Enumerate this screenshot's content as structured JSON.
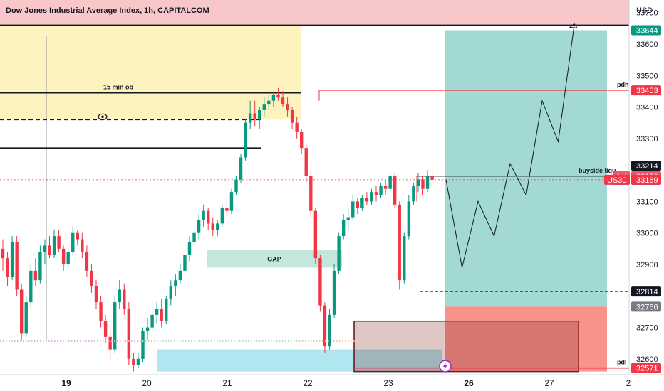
{
  "chart_data": {
    "type": "candlestick",
    "title": "Dow Jones Industrial Average Index, 1h, CAPITALCOM",
    "currency": "USD",
    "y_axis": {
      "range": [
        32550,
        33740
      ],
      "ticks": [
        33700,
        33600,
        33500,
        33400,
        33300,
        33100,
        33000,
        32900,
        32700,
        32600
      ]
    },
    "x_axis": {
      "ticks": [
        {
          "label": "19",
          "bold": true
        },
        {
          "label": "20",
          "bold": false
        },
        {
          "label": "21",
          "bold": false
        },
        {
          "label": "22",
          "bold": false
        },
        {
          "label": "23",
          "bold": false
        },
        {
          "label": "26",
          "bold": true
        },
        {
          "label": "27",
          "bold": false
        },
        {
          "label": "2",
          "bold": false
        }
      ]
    },
    "candles": [
      [
        32950,
        32980,
        32880,
        32920
      ],
      [
        32920,
        32940,
        32830,
        32860
      ],
      [
        32860,
        32990,
        32850,
        32970
      ],
      [
        32970,
        32990,
        32800,
        32820
      ],
      [
        32820,
        32840,
        32660,
        32680
      ],
      [
        32680,
        32800,
        32670,
        32780
      ],
      [
        32780,
        32900,
        32760,
        32880
      ],
      [
        32880,
        32920,
        32830,
        32850
      ],
      [
        32850,
        32960,
        32840,
        32940
      ],
      [
        32940,
        32980,
        32900,
        32960
      ],
      [
        32960,
        32990,
        32920,
        32930
      ],
      [
        32930,
        33010,
        32920,
        32990
      ],
      [
        32990,
        33010,
        32940,
        32950
      ],
      [
        32950,
        32960,
        32880,
        32900
      ],
      [
        32900,
        32950,
        32890,
        32940
      ],
      [
        32940,
        33020,
        32930,
        33000
      ],
      [
        33000,
        33010,
        32960,
        32980
      ],
      [
        32980,
        33000,
        32920,
        32940
      ],
      [
        32940,
        32960,
        32860,
        32880
      ],
      [
        32880,
        32900,
        32810,
        32830
      ],
      [
        32830,
        32850,
        32760,
        32780
      ],
      [
        32780,
        32800,
        32700,
        32720
      ],
      [
        32720,
        32740,
        32650,
        32670
      ],
      [
        32670,
        32690,
        32600,
        32630
      ],
      [
        32630,
        32800,
        32620,
        32780
      ],
      [
        32780,
        32850,
        32760,
        32820
      ],
      [
        32820,
        32840,
        32740,
        32760
      ],
      [
        32760,
        32780,
        32580,
        32600
      ],
      [
        32600,
        32620,
        32560,
        32580
      ],
      [
        32580,
        32620,
        32570,
        32600
      ],
      [
        32600,
        32700,
        32590,
        32690
      ],
      [
        32690,
        32730,
        32660,
        32700
      ],
      [
        32700,
        32760,
        32690,
        32740
      ],
      [
        32740,
        32780,
        32710,
        32760
      ],
      [
        32760,
        32790,
        32700,
        32720
      ],
      [
        32720,
        32800,
        32710,
        32790
      ],
      [
        32790,
        32850,
        32770,
        32830
      ],
      [
        32830,
        32870,
        32800,
        32850
      ],
      [
        32850,
        32900,
        32840,
        32880
      ],
      [
        32880,
        32950,
        32870,
        32930
      ],
      [
        32930,
        32990,
        32910,
        32970
      ],
      [
        32970,
        33020,
        32950,
        33000
      ],
      [
        33000,
        33060,
        32980,
        33040
      ],
      [
        33040,
        33090,
        33020,
        33070
      ],
      [
        33070,
        33080,
        33010,
        33030
      ],
      [
        33030,
        33050,
        32990,
        33010
      ],
      [
        33010,
        33040,
        32990,
        33030
      ],
      [
        33030,
        33090,
        33020,
        33080
      ],
      [
        33080,
        33110,
        33050,
        33070
      ],
      [
        33070,
        33140,
        33060,
        33130
      ],
      [
        33130,
        33180,
        33120,
        33170
      ],
      [
        33170,
        33250,
        33160,
        33240
      ],
      [
        33240,
        33360,
        33230,
        33350
      ],
      [
        33350,
        33420,
        33330,
        33380
      ],
      [
        33380,
        33420,
        33340,
        33360
      ],
      [
        33360,
        33400,
        33330,
        33390
      ],
      [
        33390,
        33430,
        33370,
        33410
      ],
      [
        33410,
        33440,
        33390,
        33420
      ],
      [
        33420,
        33450,
        33400,
        33440
      ],
      [
        33440,
        33460,
        33420,
        33430
      ],
      [
        33430,
        33450,
        33400,
        33410
      ],
      [
        33410,
        33430,
        33370,
        33390
      ],
      [
        33390,
        33400,
        33330,
        33350
      ],
      [
        33350,
        33370,
        33300,
        33320
      ],
      [
        33320,
        33330,
        33250,
        33270
      ],
      [
        33270,
        33280,
        33160,
        33180
      ],
      [
        33180,
        33200,
        33050,
        33070
      ],
      [
        33070,
        33080,
        32900,
        32920
      ],
      [
        32920,
        32930,
        32750,
        32770
      ],
      [
        32770,
        32780,
        32620,
        32640
      ],
      [
        32640,
        32760,
        32630,
        32740
      ],
      [
        32740,
        32900,
        32730,
        32880
      ],
      [
        32880,
        33000,
        32870,
        32990
      ],
      [
        32990,
        33060,
        32980,
        33040
      ],
      [
        33040,
        33080,
        33010,
        33050
      ],
      [
        33050,
        33120,
        33040,
        33100
      ],
      [
        33100,
        33110,
        33060,
        33080
      ],
      [
        33080,
        33120,
        33070,
        33110
      ],
      [
        33110,
        33130,
        33090,
        33100
      ],
      [
        33100,
        33140,
        33090,
        33130
      ],
      [
        33130,
        33150,
        33100,
        33120
      ],
      [
        33120,
        33160,
        33110,
        33150
      ],
      [
        33150,
        33170,
        33120,
        33140
      ],
      [
        33140,
        33190,
        33130,
        33180
      ],
      [
        33180,
        33190,
        33080,
        33090
      ],
      [
        33090,
        33100,
        32820,
        32850
      ],
      [
        32850,
        33000,
        32840,
        32990
      ],
      [
        32990,
        33120,
        32980,
        33100
      ],
      [
        33100,
        33160,
        33090,
        33150
      ],
      [
        33150,
        33190,
        33130,
        33170
      ],
      [
        33170,
        33180,
        33120,
        33140
      ],
      [
        33140,
        33200,
        33130,
        33180
      ],
      [
        33180,
        33200,
        33150,
        33169
      ]
    ],
    "zones": [
      {
        "label": "",
        "kind": "supply-top",
        "y_from": 33660,
        "y_to": 33740,
        "color": "#f8c7c9"
      },
      {
        "label": "",
        "kind": "order-block",
        "y_from": 33360,
        "y_to": 33660,
        "color": "#fdf3bf"
      },
      {
        "label": "GAP",
        "kind": "gap",
        "y_from": 32890,
        "y_to": 32945,
        "color": "#c3e7dd"
      },
      {
        "label": "",
        "kind": "demand",
        "y_from": 32560,
        "y_to": 32630,
        "color": "#b0e6ef"
      },
      {
        "label": "",
        "kind": "demand-box",
        "y_from": 32560,
        "y_to": 32720,
        "color": "#b0e6ef"
      },
      {
        "label": "",
        "kind": "position-profit",
        "y_from": 32766,
        "y_to": 33644,
        "color": "#a2d9d2"
      },
      {
        "label": "",
        "kind": "position-stop",
        "y_from": 32560,
        "y_to": 32766,
        "color": "#f6877e"
      }
    ],
    "levels": [
      {
        "label": "15 min ob",
        "price": 33445,
        "style": "solid"
      },
      {
        "label": "",
        "price": 33360,
        "style": "dashed"
      },
      {
        "label": "",
        "price": 33270,
        "style": "solid"
      },
      {
        "label": "pdh",
        "price": 33453,
        "style": "red"
      },
      {
        "label": "buyside liqu",
        "price": 33180,
        "style": "thin"
      },
      {
        "label": "pdl",
        "price": 32571,
        "style": "red"
      }
    ],
    "projection_path": [
      [
        33169,
        0
      ],
      [
        32890,
        1
      ],
      [
        33100,
        2
      ],
      [
        32990,
        3
      ],
      [
        33220,
        4
      ],
      [
        33120,
        5
      ],
      [
        33420,
        6
      ],
      [
        33290,
        7
      ],
      [
        33660,
        8
      ]
    ],
    "price_badges": [
      {
        "label": "",
        "value": "33644",
        "bg": "#089981",
        "fg": "#ffffff",
        "price": 33644
      },
      {
        "label": "",
        "value": "33453",
        "bg": "#f23645",
        "fg": "#ffffff",
        "price": 33453
      },
      {
        "label": "",
        "value": "33214",
        "bg": "#131722",
        "fg": "#ffffff",
        "price": 33214
      },
      {
        "label": "Ask",
        "value": "33180",
        "bg": "#f7525f",
        "fg": "#ffffff",
        "price": 33180
      },
      {
        "label": "Bid",
        "value": "33169",
        "bg": "#2962ff",
        "fg": "#ffffff",
        "price": 33169
      },
      {
        "label": "US30",
        "value": "33169",
        "bg": "#f23645",
        "fg": "#ffffff",
        "price": 33169
      },
      {
        "label": "",
        "value": "32814",
        "bg": "#131722",
        "fg": "#ffffff",
        "price": 32814
      },
      {
        "label": "",
        "value": "32766",
        "bg": "#787b86",
        "fg": "#ffffff",
        "price": 32766
      },
      {
        "label": "",
        "value": "32571",
        "bg": "#f23645",
        "fg": "#ffffff",
        "price": 32571
      }
    ],
    "colors": {
      "up": "#089981",
      "down": "#f23645",
      "axis_line": "#d1d4dc"
    }
  }
}
